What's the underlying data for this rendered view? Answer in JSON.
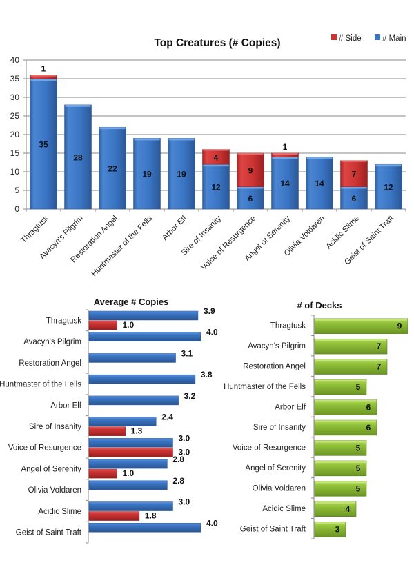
{
  "colors": {
    "main": "#3a75c4",
    "side": "#cc3333",
    "decks": "#8cbc34",
    "grid": "#888888"
  },
  "chart_data": [
    {
      "type": "bar",
      "stacked": true,
      "title": "Top Creatures (# Copies)",
      "xlabel": "",
      "ylabel": "",
      "ylim": [
        0,
        40
      ],
      "yticks": [
        0,
        5,
        10,
        15,
        20,
        25,
        30,
        35,
        40
      ],
      "grid": true,
      "legend": "top-right",
      "categories": [
        "Thragtusk",
        "Avacyn's Pilgrim",
        "Restoration Angel",
        "Huntmaster of the Fells",
        "Arbor Elf",
        "Sire of Insanity",
        "Voice of Resurgence",
        "Angel of Serenity",
        "Olivia Voldaren",
        "Acidic Slime",
        "Geist of Saint Traft"
      ],
      "series": [
        {
          "name": "# Main",
          "values": [
            35,
            28,
            22,
            19,
            19,
            12,
            6,
            14,
            14,
            6,
            12
          ]
        },
        {
          "name": "# Side",
          "values": [
            1,
            0,
            0,
            0,
            0,
            4,
            9,
            1,
            0,
            7,
            0
          ]
        }
      ],
      "legend_entries": [
        "# Side",
        "# Main"
      ]
    },
    {
      "type": "bar",
      "orientation": "horizontal",
      "title": "Average # Copies",
      "xlim": [
        0,
        4
      ],
      "grid": false,
      "categories": [
        "Thragtusk",
        "Avacyn's Pilgrim",
        "Restoration Angel",
        "Huntmaster of the Fells",
        "Arbor Elf",
        "Sire of Insanity",
        "Voice of Resurgence",
        "Angel of Serenity",
        "Olivia Voldaren",
        "Acidic Slime",
        "Geist of Saint Traft"
      ],
      "series": [
        {
          "name": "# Main",
          "values": [
            3.9,
            4.0,
            3.1,
            3.8,
            3.2,
            2.4,
            3.0,
            2.8,
            2.8,
            3.0,
            4.0
          ],
          "labels": [
            "3.9",
            "4.0",
            "3.1",
            "3.8",
            "3.2",
            "2.4",
            "3.0",
            "2.8",
            "2.8",
            "3.0",
            "4.0"
          ]
        },
        {
          "name": "# Side",
          "values": [
            1.0,
            null,
            null,
            null,
            null,
            1.3,
            3.0,
            1.0,
            null,
            1.8,
            null
          ],
          "labels": [
            "1.0",
            "",
            "",
            "",
            "",
            "1.3",
            "3.0",
            "1.0",
            "",
            "1.8",
            ""
          ]
        }
      ]
    },
    {
      "type": "bar",
      "orientation": "horizontal",
      "title": "# of Decks",
      "xlim": [
        0,
        9
      ],
      "grid": false,
      "categories": [
        "Thragtusk",
        "Avacyn's Pilgrim",
        "Restoration Angel",
        "Huntmaster of the Fells",
        "Arbor Elf",
        "Sire of Insanity",
        "Voice of Resurgence",
        "Angel of Serenity",
        "Olivia Voldaren",
        "Acidic Slime",
        "Geist of Saint Traft"
      ],
      "values": [
        9,
        7,
        7,
        5,
        6,
        6,
        5,
        5,
        5,
        4,
        3
      ]
    }
  ]
}
